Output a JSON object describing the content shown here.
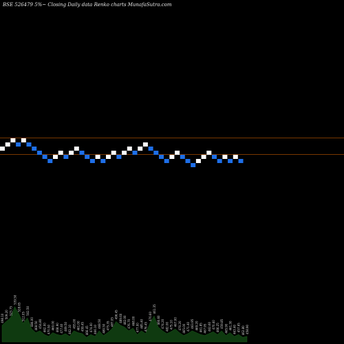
{
  "header": {
    "title": "BSE 526479 5%~  Closing Daily data  Renko  charts MunafaSutra.com"
  },
  "chart_data": {
    "type": "renko",
    "title": "BSE 526479 5%~  Closing Daily data  Renko  charts MunafaSutra.com",
    "colors": {
      "up": "#ffffff",
      "down": "#1e6fe8",
      "level_line": "#a04a00",
      "volume": "#0f3a10",
      "volume_label": "#d8d8d8"
    },
    "bricks": [
      {
        "dir": "up",
        "level": 4
      },
      {
        "dir": "up",
        "level": 5
      },
      {
        "dir": "up",
        "level": 6
      },
      {
        "dir": "down",
        "level": 5
      },
      {
        "dir": "up",
        "level": 6
      },
      {
        "dir": "down",
        "level": 5
      },
      {
        "dir": "down",
        "level": 4
      },
      {
        "dir": "down",
        "level": 3
      },
      {
        "dir": "down",
        "level": 2
      },
      {
        "dir": "down",
        "level": 1
      },
      {
        "dir": "up",
        "level": 2
      },
      {
        "dir": "up",
        "level": 3
      },
      {
        "dir": "down",
        "level": 2
      },
      {
        "dir": "up",
        "level": 3
      },
      {
        "dir": "up",
        "level": 4
      },
      {
        "dir": "down",
        "level": 3
      },
      {
        "dir": "down",
        "level": 2
      },
      {
        "dir": "down",
        "level": 1
      },
      {
        "dir": "up",
        "level": 2
      },
      {
        "dir": "down",
        "level": 1
      },
      {
        "dir": "up",
        "level": 2
      },
      {
        "dir": "up",
        "level": 3
      },
      {
        "dir": "down",
        "level": 2
      },
      {
        "dir": "up",
        "level": 3
      },
      {
        "dir": "up",
        "level": 4
      },
      {
        "dir": "down",
        "level": 3
      },
      {
        "dir": "up",
        "level": 4
      },
      {
        "dir": "up",
        "level": 5
      },
      {
        "dir": "down",
        "level": 4
      },
      {
        "dir": "down",
        "level": 3
      },
      {
        "dir": "down",
        "level": 2
      },
      {
        "dir": "down",
        "level": 1
      },
      {
        "dir": "up",
        "level": 2
      },
      {
        "dir": "up",
        "level": 3
      },
      {
        "dir": "down",
        "level": 2
      },
      {
        "dir": "down",
        "level": 1
      },
      {
        "dir": "down",
        "level": 0
      },
      {
        "dir": "up",
        "level": 1
      },
      {
        "dir": "up",
        "level": 2
      },
      {
        "dir": "up",
        "level": 3
      },
      {
        "dir": "down",
        "level": 2
      },
      {
        "dir": "down",
        "level": 1
      },
      {
        "dir": "up",
        "level": 2
      },
      {
        "dir": "down",
        "level": 1
      },
      {
        "dir": "up",
        "level": 2
      },
      {
        "dir": "down",
        "level": 1
      }
    ],
    "level_lines": [
      6,
      2
    ],
    "volume": [
      {
        "v": 18,
        "label": "498.10"
      },
      {
        "v": 22,
        "label": "509.20"
      },
      {
        "v": 26,
        "label": "523.75"
      },
      {
        "v": 38,
        "label": "539.50"
      },
      {
        "v": 30,
        "label": "528.65"
      },
      {
        "v": 20,
        "label": "512.05"
      },
      {
        "v": 26,
        "label": "502.50"
      },
      {
        "v": 14,
        "label": "484.00"
      },
      {
        "v": 10,
        "label": "468.50"
      },
      {
        "v": 12,
        "label": "454.80"
      },
      {
        "v": 8,
        "label": "462.00"
      },
      {
        "v": 6,
        "label": "470.50"
      },
      {
        "v": 10,
        "label": "460.00"
      },
      {
        "v": 8,
        "label": "468.90"
      },
      {
        "v": 7,
        "label": "477.40"
      },
      {
        "v": 9,
        "label": "469.50"
      },
      {
        "v": 6,
        "label": "462.10"
      },
      {
        "v": 12,
        "label": "455.00"
      },
      {
        "v": 10,
        "label": "461.00"
      },
      {
        "v": 9,
        "label": "459.45"
      },
      {
        "v": 5,
        "label": "466.45"
      },
      {
        "v": 8,
        "label": "474.00"
      },
      {
        "v": 6,
        "label": "466.10"
      },
      {
        "v": 12,
        "label": "468.50"
      },
      {
        "v": 7,
        "label": "480.50"
      },
      {
        "v": 10,
        "label": "475.35"
      },
      {
        "v": 14,
        "label": "487.05"
      },
      {
        "v": 22,
        "label": "496.45"
      },
      {
        "v": 18,
        "label": "489.60"
      },
      {
        "v": 16,
        "label": "482.00"
      },
      {
        "v": 12,
        "label": "476.70"
      },
      {
        "v": 15,
        "label": "468.00"
      },
      {
        "v": 8,
        "label": "477.00"
      },
      {
        "v": 12,
        "label": "485.40"
      },
      {
        "v": 9,
        "label": "476.45"
      },
      {
        "v": 20,
        "label": "470.60"
      },
      {
        "v": 28,
        "label": "461.35"
      },
      {
        "v": 16,
        "label": "466.60"
      },
      {
        "v": 12,
        "label": "474.20"
      },
      {
        "v": 9,
        "label": "482.00"
      },
      {
        "v": 11,
        "label": "475.10"
      },
      {
        "v": 14,
        "label": "467.00"
      },
      {
        "v": 10,
        "label": "470.20"
      },
      {
        "v": 7,
        "label": "465.00"
      },
      {
        "v": 9,
        "label": "471.40"
      },
      {
        "v": 12,
        "label": "463.95"
      },
      {
        "v": 10,
        "label": "469.20"
      },
      {
        "v": 8,
        "label": "461.85"
      },
      {
        "v": 7,
        "label": "467.95"
      },
      {
        "v": 9,
        "label": "462.60"
      },
      {
        "v": 11,
        "label": "470.40"
      },
      {
        "v": 8,
        "label": "466.25"
      },
      {
        "v": 12,
        "label": "459.85"
      },
      {
        "v": 7,
        "label": "465.90"
      },
      {
        "v": 10,
        "label": "461.30"
      },
      {
        "v": 6,
        "label": "463.40"
      },
      {
        "v": 8,
        "label": "457.65"
      },
      {
        "v": 5,
        "label": "462.80"
      },
      {
        "v": 6,
        "label": "458.90"
      }
    ]
  }
}
